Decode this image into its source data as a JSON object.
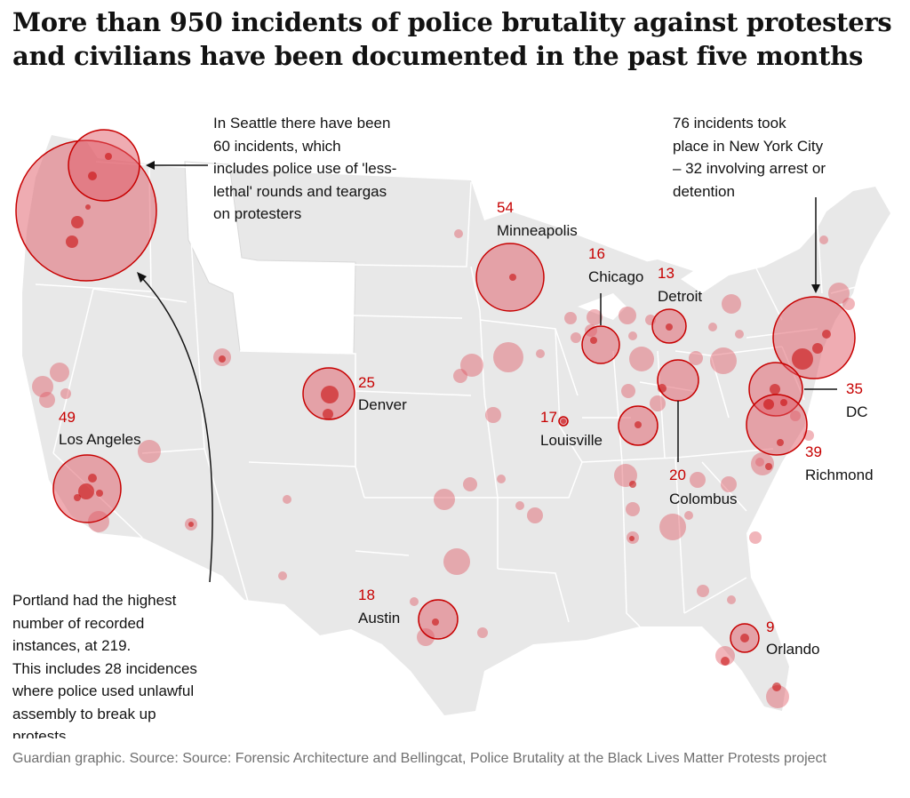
{
  "title": "More than 950 incidents of police brutality against protesters and civilians have been documented in the past five months",
  "annotations": {
    "seattle": [
      "In Seattle there have been",
      "60 incidents, which",
      "includes police use of 'less-",
      "lethal' rounds and teargas",
      "on protesters"
    ],
    "nyc": [
      "76 incidents took",
      "place in New York City",
      "– 32 involving arrest or",
      "detention"
    ],
    "portland_bold": [
      "Portland had the highest",
      "number of recorded",
      "instances, at 219."
    ],
    "portland": [
      "This includes 28 incidences",
      "where police used unlawful",
      "assembly to break up",
      "protests"
    ]
  },
  "cities": {
    "minneapolis": {
      "count": "54",
      "name": "Minneapolis"
    },
    "chicago": {
      "count": "16",
      "name": "Chicago"
    },
    "detroit": {
      "count": "13",
      "name": "Detroit"
    },
    "denver": {
      "count": "25",
      "name": "Denver"
    },
    "los_angeles": {
      "count": "49",
      "name": "Los Angeles"
    },
    "louisville": {
      "count": "17",
      "name": "Louisville"
    },
    "dc": {
      "count": "35",
      "name": "DC"
    },
    "richmond": {
      "count": "39",
      "name": "Richmond"
    },
    "columbus": {
      "count": "20",
      "name": "Colombus"
    },
    "austin": {
      "count": "18",
      "name": "Austin"
    },
    "orlando": {
      "count": "9",
      "name": "Orlando"
    }
  },
  "source": "Guardian graphic. Source: Source: Forensic Architecture and Bellingcat, Police Brutality at the Black Lives Matter Protests project",
  "colors": {
    "land": "#e8e8e8",
    "border": "#ffffff",
    "marker_fill": "#e05a65",
    "marker_stroke": "#c70000",
    "highlight_text": "#c70000"
  }
}
